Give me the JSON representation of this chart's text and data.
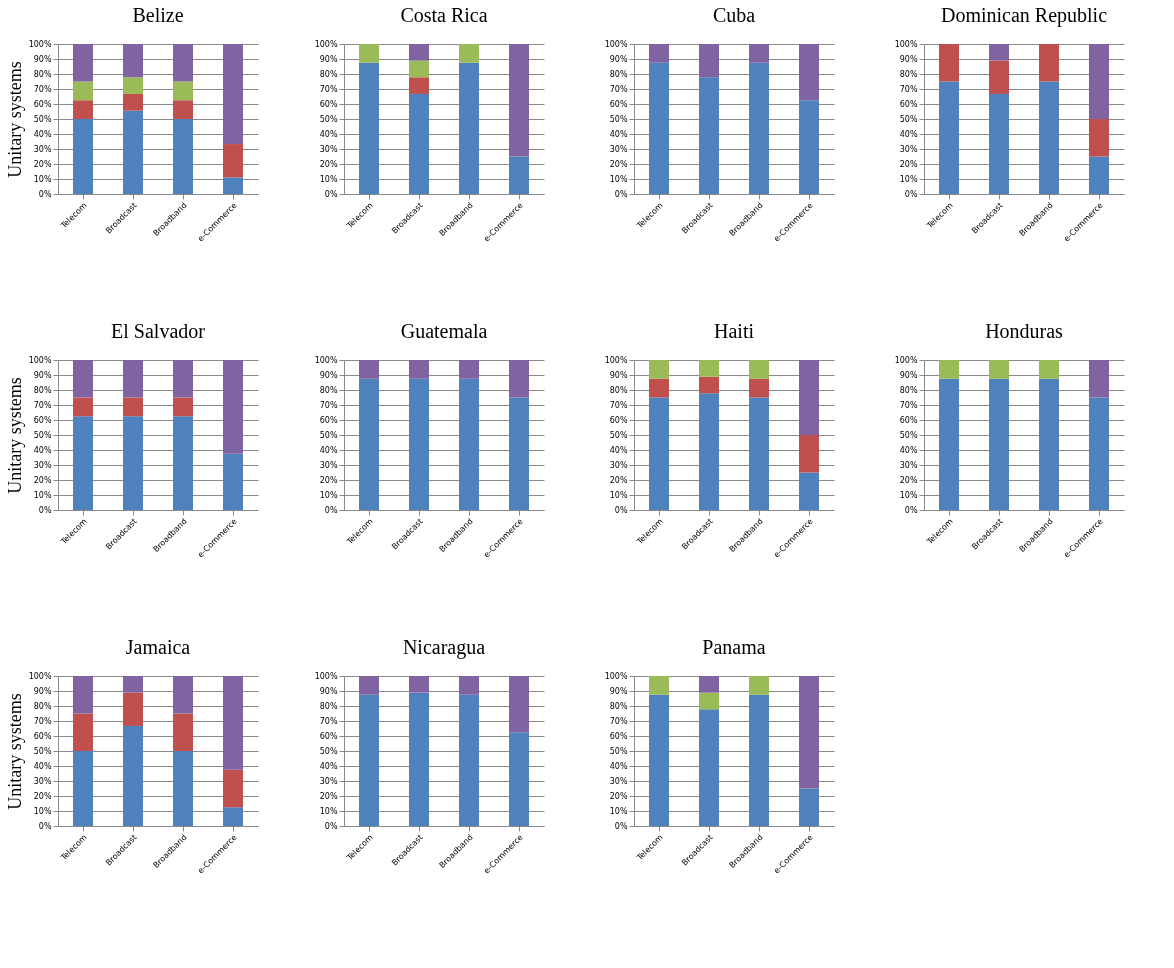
{
  "chart_data": [
    {
      "type": "bar",
      "stacked": true,
      "title": "Belize",
      "ylabel": "Unitary systems",
      "categories": [
        "Telecom",
        "Broadcast",
        "Broadband",
        "e-Commerce"
      ],
      "grid": "y",
      "ylim": [
        0,
        100
      ],
      "yticks": [
        {
          "value": 0,
          "label": "0%"
        },
        {
          "value": 10,
          "label": "10%"
        },
        {
          "value": 20,
          "label": "20%"
        },
        {
          "value": 30,
          "label": "30%"
        },
        {
          "value": 40,
          "label": "40%"
        },
        {
          "value": 50,
          "label": "50%"
        },
        {
          "value": 60,
          "label": "60%"
        },
        {
          "value": 70,
          "label": "70%"
        },
        {
          "value": 80,
          "label": "80%"
        },
        {
          "value": 90,
          "label": "90%"
        },
        {
          "value": 100,
          "label": "100%"
        }
      ],
      "series": [
        {
          "color": "#4f81bd",
          "values": [
            50,
            55.6,
            50,
            11.1
          ]
        },
        {
          "color": "#c0504d",
          "values": [
            12.5,
            11.1,
            12.5,
            22.2
          ]
        },
        {
          "color": "#9bbb59",
          "values": [
            12.5,
            11.1,
            12.5,
            0
          ]
        },
        {
          "color": "#8064a2",
          "values": [
            25,
            22.2,
            25,
            66.7
          ]
        }
      ]
    },
    {
      "type": "bar",
      "stacked": true,
      "title": "Costa Rica",
      "categories": [
        "Telecom",
        "Broadcast",
        "Broadband",
        "e-Commerce"
      ],
      "grid": "y",
      "ylim": [
        0,
        100
      ],
      "yticks": [
        {
          "value": 0,
          "label": "0%"
        },
        {
          "value": 10,
          "label": "10%"
        },
        {
          "value": 20,
          "label": "20%"
        },
        {
          "value": 30,
          "label": "30%"
        },
        {
          "value": 40,
          "label": "40%"
        },
        {
          "value": 50,
          "label": "50%"
        },
        {
          "value": 60,
          "label": "60%"
        },
        {
          "value": 70,
          "label": "70%"
        },
        {
          "value": 80,
          "label": "80%"
        },
        {
          "value": 90,
          "label": "90%"
        },
        {
          "value": 100,
          "label": "100%"
        }
      ],
      "series": [
        {
          "color": "#4f81bd",
          "values": [
            87.5,
            66.7,
            87.5,
            25
          ]
        },
        {
          "color": "#c0504d",
          "values": [
            0,
            11.1,
            0,
            0
          ]
        },
        {
          "color": "#9bbb59",
          "values": [
            12.5,
            11.1,
            12.5,
            0
          ]
        },
        {
          "color": "#8064a2",
          "values": [
            0,
            11.1,
            0,
            75
          ]
        }
      ]
    },
    {
      "type": "bar",
      "stacked": true,
      "title": "Cuba",
      "categories": [
        "Telecom",
        "Broadcast",
        "Broadband",
        "e-Commerce"
      ],
      "grid": "y",
      "ylim": [
        0,
        100
      ],
      "yticks": [
        {
          "value": 0,
          "label": "0%"
        },
        {
          "value": 10,
          "label": "10%"
        },
        {
          "value": 20,
          "label": "20%"
        },
        {
          "value": 30,
          "label": "30%"
        },
        {
          "value": 40,
          "label": "40%"
        },
        {
          "value": 50,
          "label": "50%"
        },
        {
          "value": 60,
          "label": "60%"
        },
        {
          "value": 70,
          "label": "70%"
        },
        {
          "value": 80,
          "label": "80%"
        },
        {
          "value": 90,
          "label": "90%"
        },
        {
          "value": 100,
          "label": "100%"
        }
      ],
      "series": [
        {
          "color": "#4f81bd",
          "values": [
            87.5,
            77.8,
            87.5,
            62.5
          ]
        },
        {
          "color": "#c0504d",
          "values": [
            0,
            0,
            0,
            0
          ]
        },
        {
          "color": "#9bbb59",
          "values": [
            0,
            0,
            0,
            0
          ]
        },
        {
          "color": "#8064a2",
          "values": [
            12.5,
            22.2,
            12.5,
            37.5
          ]
        }
      ]
    },
    {
      "type": "bar",
      "stacked": true,
      "title": "Dominican Republic",
      "categories": [
        "Telecom",
        "Broadcast",
        "Broadband",
        "e-Commerce"
      ],
      "grid": "y",
      "ylim": [
        0,
        100
      ],
      "yticks": [
        {
          "value": 0,
          "label": "0%"
        },
        {
          "value": 10,
          "label": "10%"
        },
        {
          "value": 20,
          "label": "20%"
        },
        {
          "value": 30,
          "label": "30%"
        },
        {
          "value": 40,
          "label": "40%"
        },
        {
          "value": 50,
          "label": "50%"
        },
        {
          "value": 60,
          "label": "60%"
        },
        {
          "value": 70,
          "label": "70%"
        },
        {
          "value": 80,
          "label": "80%"
        },
        {
          "value": 90,
          "label": "90%"
        },
        {
          "value": 100,
          "label": "100%"
        }
      ],
      "series": [
        {
          "color": "#4f81bd",
          "values": [
            75,
            66.7,
            75,
            25
          ]
        },
        {
          "color": "#c0504d",
          "values": [
            25,
            22.2,
            25,
            25
          ]
        },
        {
          "color": "#9bbb59",
          "values": [
            0,
            0,
            0,
            0
          ]
        },
        {
          "color": "#8064a2",
          "values": [
            0,
            11.1,
            0,
            50
          ]
        }
      ]
    },
    {
      "type": "bar",
      "stacked": true,
      "title": "El Salvador",
      "ylabel": "Unitary systems",
      "categories": [
        "Telecom",
        "Broadcast",
        "Broadband",
        "e-Commerce"
      ],
      "grid": "y",
      "ylim": [
        0,
        100
      ],
      "yticks": [
        {
          "value": 0,
          "label": "0%"
        },
        {
          "value": 10,
          "label": "10%"
        },
        {
          "value": 20,
          "label": "20%"
        },
        {
          "value": 30,
          "label": "30%"
        },
        {
          "value": 40,
          "label": "40%"
        },
        {
          "value": 50,
          "label": "50%"
        },
        {
          "value": 60,
          "label": "60%"
        },
        {
          "value": 70,
          "label": "70%"
        },
        {
          "value": 80,
          "label": "80%"
        },
        {
          "value": 90,
          "label": "90%"
        },
        {
          "value": 100,
          "label": "100%"
        }
      ],
      "series": [
        {
          "color": "#4f81bd",
          "values": [
            62.5,
            62.5,
            62.5,
            37.5
          ]
        },
        {
          "color": "#c0504d",
          "values": [
            12.5,
            12.5,
            12.5,
            0
          ]
        },
        {
          "color": "#9bbb59",
          "values": [
            0,
            0,
            0,
            0
          ]
        },
        {
          "color": "#8064a2",
          "values": [
            25,
            25,
            25,
            62.5
          ]
        }
      ]
    },
    {
      "type": "bar",
      "stacked": true,
      "title": "Guatemala",
      "categories": [
        "Telecom",
        "Broadcast",
        "Broadband",
        "e-Commerce"
      ],
      "grid": "y",
      "ylim": [
        0,
        100
      ],
      "yticks": [
        {
          "value": 0,
          "label": "0%"
        },
        {
          "value": 10,
          "label": "10%"
        },
        {
          "value": 20,
          "label": "20%"
        },
        {
          "value": 30,
          "label": "30%"
        },
        {
          "value": 40,
          "label": "40%"
        },
        {
          "value": 50,
          "label": "50%"
        },
        {
          "value": 60,
          "label": "60%"
        },
        {
          "value": 70,
          "label": "70%"
        },
        {
          "value": 80,
          "label": "80%"
        },
        {
          "value": 90,
          "label": "90%"
        },
        {
          "value": 100,
          "label": "100%"
        }
      ],
      "series": [
        {
          "color": "#4f81bd",
          "values": [
            87.5,
            87.5,
            87.5,
            75
          ]
        },
        {
          "color": "#c0504d",
          "values": [
            0,
            0,
            0,
            0
          ]
        },
        {
          "color": "#9bbb59",
          "values": [
            0,
            0,
            0,
            0
          ]
        },
        {
          "color": "#8064a2",
          "values": [
            12.5,
            12.5,
            12.5,
            25
          ]
        }
      ]
    },
    {
      "type": "bar",
      "stacked": true,
      "title": "Haiti",
      "categories": [
        "Telecom",
        "Broadcast",
        "Broadband",
        "e-Commerce"
      ],
      "grid": "y",
      "ylim": [
        0,
        100
      ],
      "yticks": [
        {
          "value": 0,
          "label": "0%"
        },
        {
          "value": 10,
          "label": "10%"
        },
        {
          "value": 20,
          "label": "20%"
        },
        {
          "value": 30,
          "label": "30%"
        },
        {
          "value": 40,
          "label": "40%"
        },
        {
          "value": 50,
          "label": "50%"
        },
        {
          "value": 60,
          "label": "60%"
        },
        {
          "value": 70,
          "label": "70%"
        },
        {
          "value": 80,
          "label": "80%"
        },
        {
          "value": 90,
          "label": "90%"
        },
        {
          "value": 100,
          "label": "100%"
        }
      ],
      "series": [
        {
          "color": "#4f81bd",
          "values": [
            75,
            77.8,
            75,
            25
          ]
        },
        {
          "color": "#c0504d",
          "values": [
            12.5,
            11.1,
            12.5,
            25
          ]
        },
        {
          "color": "#9bbb59",
          "values": [
            12.5,
            11.1,
            12.5,
            0
          ]
        },
        {
          "color": "#8064a2",
          "values": [
            0,
            0,
            0,
            50
          ]
        }
      ]
    },
    {
      "type": "bar",
      "stacked": true,
      "title": "Honduras",
      "categories": [
        "Telecom",
        "Broadcast",
        "Broadband",
        "e-Commerce"
      ],
      "grid": "y",
      "ylim": [
        0,
        100
      ],
      "yticks": [
        {
          "value": 0,
          "label": "0%"
        },
        {
          "value": 10,
          "label": "10%"
        },
        {
          "value": 20,
          "label": "20%"
        },
        {
          "value": 30,
          "label": "30%"
        },
        {
          "value": 40,
          "label": "40%"
        },
        {
          "value": 50,
          "label": "50%"
        },
        {
          "value": 60,
          "label": "60%"
        },
        {
          "value": 70,
          "label": "70%"
        },
        {
          "value": 80,
          "label": "80%"
        },
        {
          "value": 90,
          "label": "90%"
        },
        {
          "value": 100,
          "label": "100%"
        }
      ],
      "series": [
        {
          "color": "#4f81bd",
          "values": [
            87.5,
            87.5,
            87.5,
            75
          ]
        },
        {
          "color": "#c0504d",
          "values": [
            0,
            0,
            0,
            0
          ]
        },
        {
          "color": "#9bbb59",
          "values": [
            12.5,
            12.5,
            12.5,
            0
          ]
        },
        {
          "color": "#8064a2",
          "values": [
            0,
            0,
            0,
            25
          ]
        }
      ]
    },
    {
      "type": "bar",
      "stacked": true,
      "title": "Jamaica",
      "ylabel": "Unitary systems",
      "categories": [
        "Telecom",
        "Broadcast",
        "Broadband",
        "e-Commerce"
      ],
      "grid": "y",
      "ylim": [
        0,
        100
      ],
      "yticks": [
        {
          "value": 0,
          "label": "0%"
        },
        {
          "value": 10,
          "label": "10%"
        },
        {
          "value": 20,
          "label": "20%"
        },
        {
          "value": 30,
          "label": "30%"
        },
        {
          "value": 40,
          "label": "40%"
        },
        {
          "value": 50,
          "label": "50%"
        },
        {
          "value": 60,
          "label": "60%"
        },
        {
          "value": 70,
          "label": "70%"
        },
        {
          "value": 80,
          "label": "80%"
        },
        {
          "value": 90,
          "label": "90%"
        },
        {
          "value": 100,
          "label": "100%"
        }
      ],
      "series": [
        {
          "color": "#4f81bd",
          "values": [
            50,
            66.7,
            50,
            12.5
          ]
        },
        {
          "color": "#c0504d",
          "values": [
            25,
            22.2,
            25,
            25
          ]
        },
        {
          "color": "#9bbb59",
          "values": [
            0,
            0,
            0,
            0
          ]
        },
        {
          "color": "#8064a2",
          "values": [
            25,
            11.1,
            25,
            62.5
          ]
        }
      ]
    },
    {
      "type": "bar",
      "stacked": true,
      "title": "Nicaragua",
      "categories": [
        "Telecom",
        "Broadcast",
        "Broadband",
        "e-Commerce"
      ],
      "grid": "y",
      "ylim": [
        0,
        100
      ],
      "yticks": [
        {
          "value": 0,
          "label": "0%"
        },
        {
          "value": 10,
          "label": "10%"
        },
        {
          "value": 20,
          "label": "20%"
        },
        {
          "value": 30,
          "label": "30%"
        },
        {
          "value": 40,
          "label": "40%"
        },
        {
          "value": 50,
          "label": "50%"
        },
        {
          "value": 60,
          "label": "60%"
        },
        {
          "value": 70,
          "label": "70%"
        },
        {
          "value": 80,
          "label": "80%"
        },
        {
          "value": 90,
          "label": "90%"
        },
        {
          "value": 100,
          "label": "100%"
        }
      ],
      "series": [
        {
          "color": "#4f81bd",
          "values": [
            87.5,
            88.9,
            87.5,
            62.5
          ]
        },
        {
          "color": "#c0504d",
          "values": [
            0,
            0,
            0,
            0
          ]
        },
        {
          "color": "#9bbb59",
          "values": [
            0,
            0,
            0,
            0
          ]
        },
        {
          "color": "#8064a2",
          "values": [
            12.5,
            11.1,
            12.5,
            37.5
          ]
        }
      ]
    },
    {
      "type": "bar",
      "stacked": true,
      "title": "Panama",
      "categories": [
        "Telecom",
        "Broadcast",
        "Broadband",
        "e-Commerce"
      ],
      "grid": "y",
      "ylim": [
        0,
        100
      ],
      "yticks": [
        {
          "value": 0,
          "label": "0%"
        },
        {
          "value": 10,
          "label": "10%"
        },
        {
          "value": 20,
          "label": "20%"
        },
        {
          "value": 30,
          "label": "30%"
        },
        {
          "value": 40,
          "label": "40%"
        },
        {
          "value": 50,
          "label": "50%"
        },
        {
          "value": 60,
          "label": "60%"
        },
        {
          "value": 70,
          "label": "70%"
        },
        {
          "value": 80,
          "label": "80%"
        },
        {
          "value": 90,
          "label": "90%"
        },
        {
          "value": 100,
          "label": "100%"
        }
      ],
      "series": [
        {
          "color": "#4f81bd",
          "values": [
            87.5,
            77.8,
            87.5,
            25
          ]
        },
        {
          "color": "#c0504d",
          "values": [
            0,
            0,
            0,
            0
          ]
        },
        {
          "color": "#9bbb59",
          "values": [
            12.5,
            11.1,
            12.5,
            0
          ]
        },
        {
          "color": "#8064a2",
          "values": [
            0,
            11.1,
            0,
            75
          ]
        }
      ]
    }
  ]
}
